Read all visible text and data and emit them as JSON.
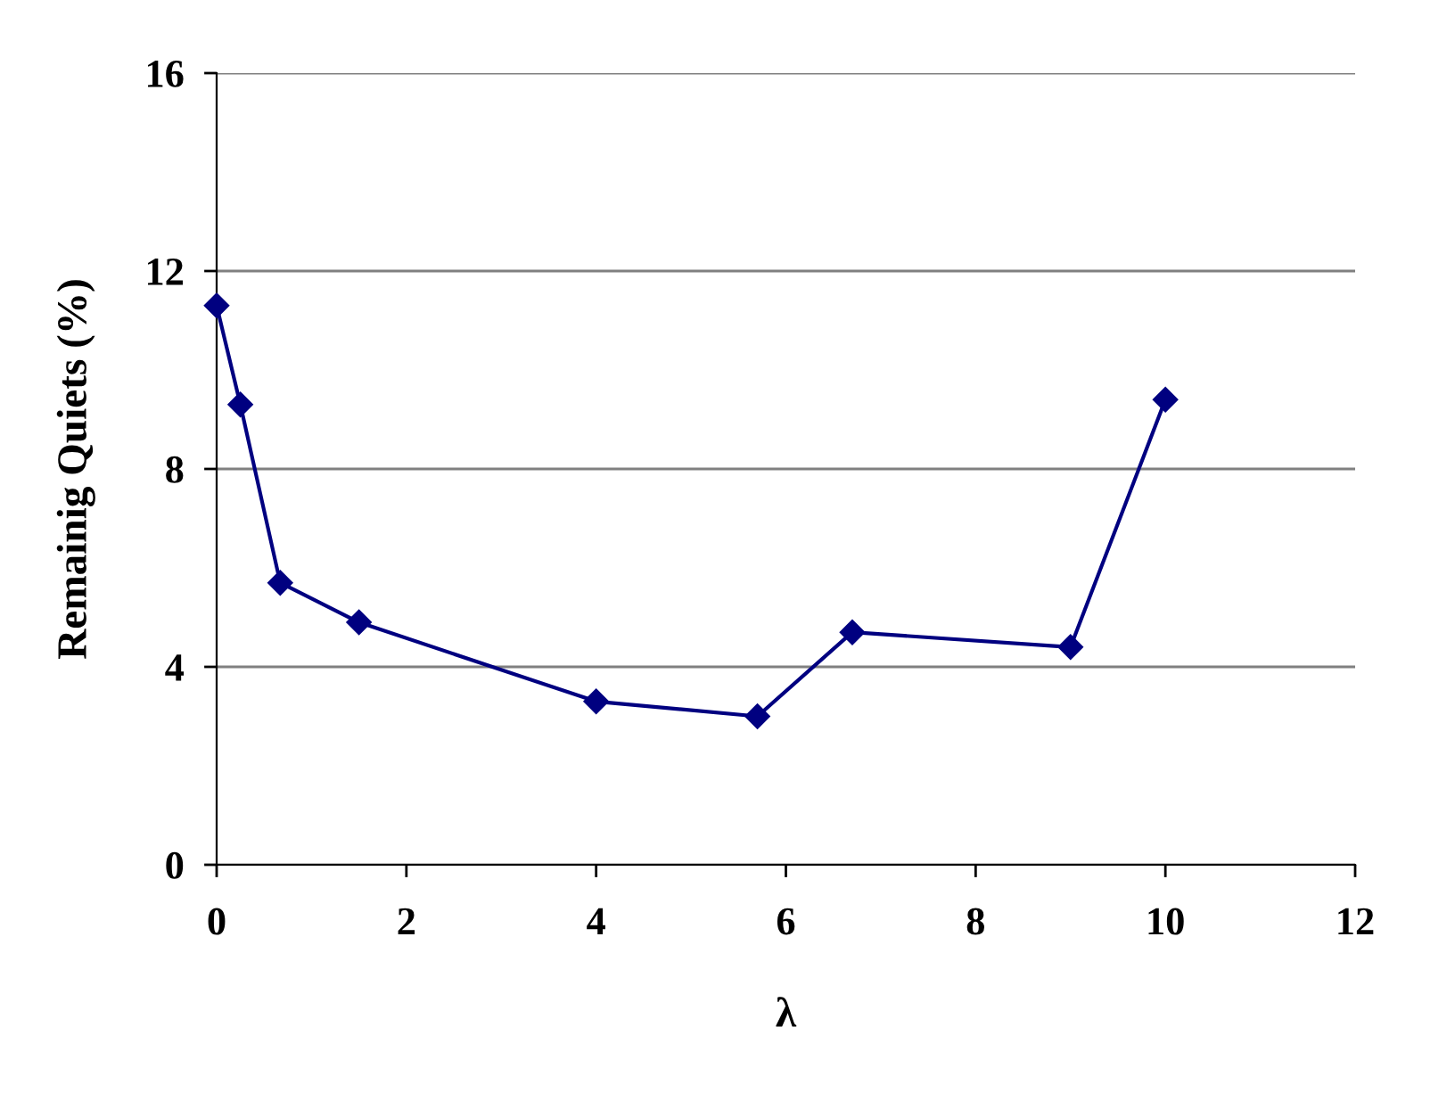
{
  "chart_data": {
    "type": "line",
    "xlabel": "λ",
    "ylabel": "Remainig Quiets (%)",
    "x": [
      0,
      0.25,
      0.67,
      1.5,
      4.0,
      5.7,
      6.7,
      9.0,
      10.0
    ],
    "series": [
      {
        "color": "#000080",
        "values": [
          11.3,
          9.3,
          5.7,
          4.9,
          3.3,
          3.0,
          4.7,
          4.4,
          9.4
        ]
      }
    ],
    "xlim": [
      0,
      12
    ],
    "xticks": [
      0,
      2,
      4,
      6,
      8,
      10,
      12
    ],
    "ylim": [
      0,
      16
    ],
    "yticks": [
      0,
      4,
      8,
      12,
      16
    ],
    "grid": "y",
    "marker": "diamond",
    "line_style": "solid"
  }
}
